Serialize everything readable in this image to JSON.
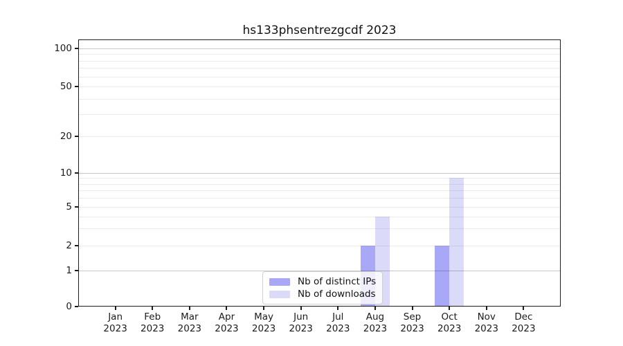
{
  "chart_data": {
    "type": "bar",
    "title": "hs133phsentrezgcdf 2023",
    "categories": [
      "Jan",
      "Feb",
      "Mar",
      "Apr",
      "May",
      "Jun",
      "Jul",
      "Aug",
      "Sep",
      "Oct",
      "Nov",
      "Dec"
    ],
    "category_year": "2023",
    "series": [
      {
        "name": "Nb of distinct IPs",
        "color": "#a8a8f6",
        "values": [
          0,
          0,
          0,
          0,
          0,
          0,
          0,
          2,
          0,
          2,
          0,
          0
        ]
      },
      {
        "name": "Nb of downloads",
        "color": "#dbdbf9",
        "values": [
          0,
          0,
          0,
          0,
          0,
          0,
          0,
          4,
          0,
          9,
          0,
          0
        ]
      }
    ],
    "yscale": "symlog",
    "yticks": [
      0,
      1,
      2,
      5,
      10,
      20,
      50,
      100
    ],
    "ylim": [
      0,
      118
    ],
    "minor_gridlines": [
      2,
      3,
      4,
      5,
      6,
      7,
      8,
      9,
      20,
      30,
      40,
      50,
      60,
      70,
      80,
      90
    ],
    "major_gridlines": [
      1,
      10,
      100
    ],
    "xlabel": "",
    "ylabel": "",
    "grid": "horizontal",
    "legend": {
      "position": "bottom-center-inside",
      "background": "rgba(255,255,255,0.8)"
    }
  },
  "colors": {
    "distinct_ips": "#a8a8f6",
    "downloads": "#dbdbf9",
    "grid_major": "#c7c7c7",
    "grid_minor": "#ededed",
    "axis": "#1b1b1b",
    "background": "#ffffff"
  }
}
